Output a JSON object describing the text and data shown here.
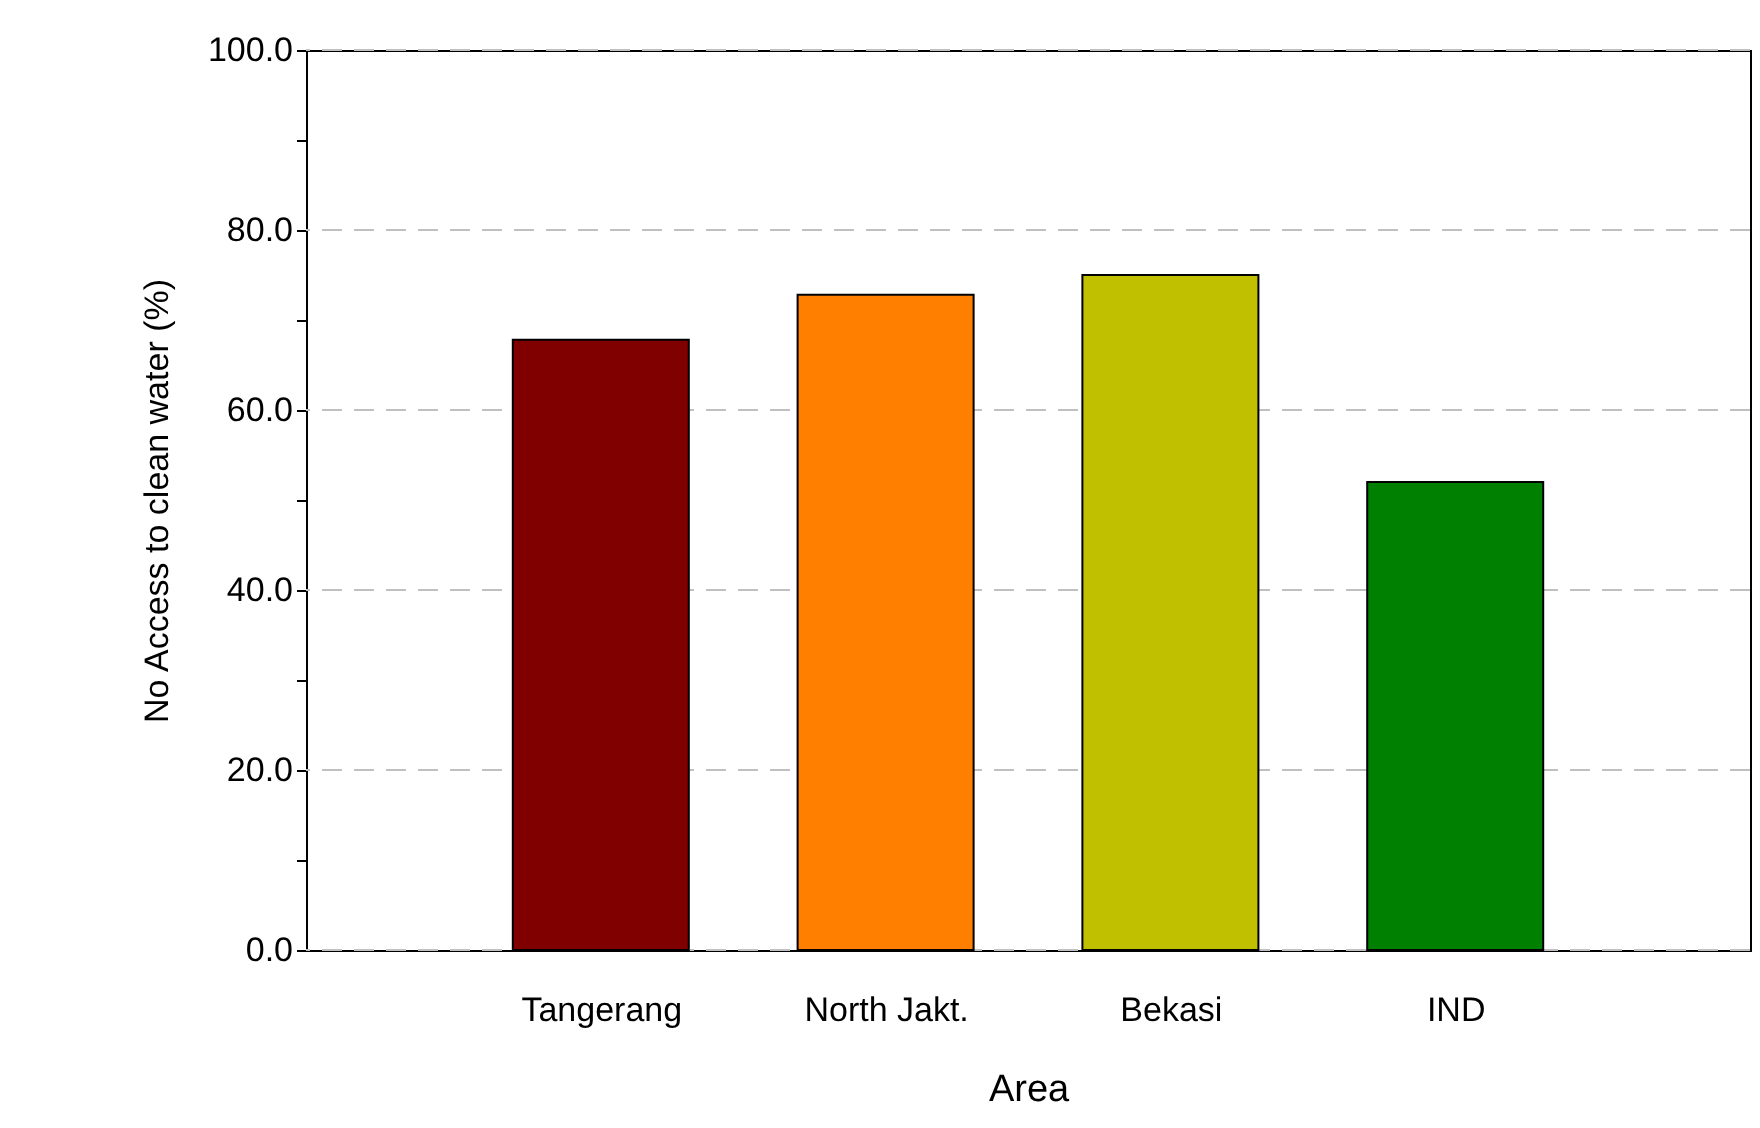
{
  "chart_data": {
    "type": "bar",
    "xlabel": "Area",
    "ylabel": "No Access to clean water (%)",
    "categories": [
      "Tangerang",
      "North Jakt.",
      "Bekasi",
      "IND"
    ],
    "values": [
      67.8,
      72.8,
      75.0,
      52.0
    ],
    "colors": [
      "#800000",
      "#ff8000",
      "#c0c000",
      "#008000"
    ],
    "ylim": [
      0,
      100
    ],
    "yticks": [
      {
        "value": 0,
        "label": "0.0"
      },
      {
        "value": 10,
        "label": null
      },
      {
        "value": 20,
        "label": "20.0"
      },
      {
        "value": 30,
        "label": null
      },
      {
        "value": 40,
        "label": "40.0"
      },
      {
        "value": 50,
        "label": null
      },
      {
        "value": 60,
        "label": "60.0"
      },
      {
        "value": 70,
        "label": null
      },
      {
        "value": 80,
        "label": "80.0"
      },
      {
        "value": 90,
        "label": null
      },
      {
        "value": 100,
        "label": "100.0"
      }
    ],
    "grid": "y"
  }
}
